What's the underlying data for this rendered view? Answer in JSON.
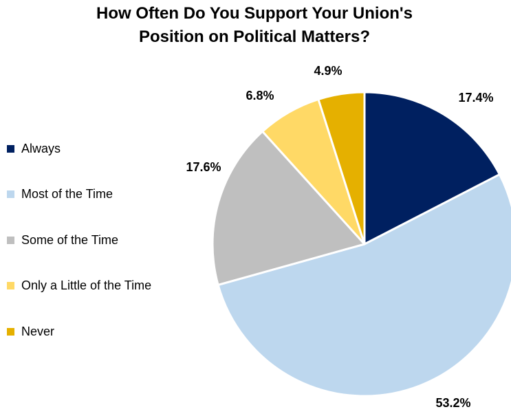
{
  "title_line1": "How Often Do You Support Your Union's",
  "title_line2": "Position on Political Matters?",
  "chart_data": {
    "type": "pie",
    "title": "How Often Do You Support Your Union's Position on Political Matters?",
    "categories": [
      "Always",
      "Most of the Time",
      "Some of the Time",
      "Only a Little of the Time",
      "Never"
    ],
    "values": [
      17.4,
      53.2,
      17.6,
      6.8,
      4.9
    ],
    "value_labels": [
      "17.4%",
      "53.2%",
      "17.6%",
      "6.8%",
      "4.9%"
    ],
    "colors": [
      "#002060",
      "#BDD7EE",
      "#BFBFBF",
      "#FFD966",
      "#E5B000"
    ],
    "legend_position": "left"
  }
}
